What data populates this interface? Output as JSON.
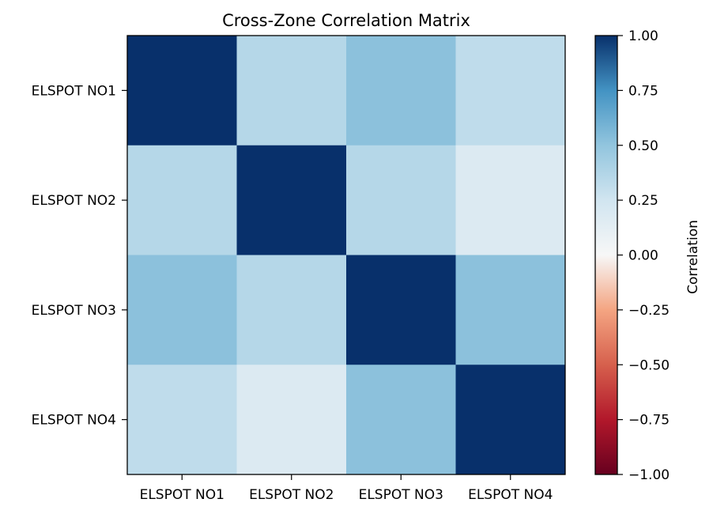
{
  "chart_data": {
    "type": "heatmap",
    "title": "Cross-Zone Correlation Matrix",
    "x_categories": [
      "ELSPOT NO1",
      "ELSPOT NO2",
      "ELSPOT NO3",
      "ELSPOT NO4"
    ],
    "y_categories": [
      "ELSPOT NO1",
      "ELSPOT NO2",
      "ELSPOT NO3",
      "ELSPOT NO4"
    ],
    "matrix": [
      [
        1.0,
        0.36,
        0.52,
        0.32
      ],
      [
        0.36,
        1.0,
        0.36,
        0.18
      ],
      [
        0.52,
        0.36,
        1.0,
        0.52
      ],
      [
        0.32,
        0.18,
        0.52,
        1.0
      ]
    ],
    "colorbar": {
      "label": "Correlation",
      "range": [
        -1.0,
        1.0
      ],
      "ticks": [
        "1.00",
        "0.75",
        "0.50",
        "0.25",
        "0.00",
        "−0.25",
        "−0.50",
        "−0.75",
        "−1.00"
      ],
      "tick_values": [
        1.0,
        0.75,
        0.5,
        0.25,
        0.0,
        -0.25,
        -0.5,
        -0.75,
        -1.0
      ],
      "colormap": "RdBu"
    }
  }
}
